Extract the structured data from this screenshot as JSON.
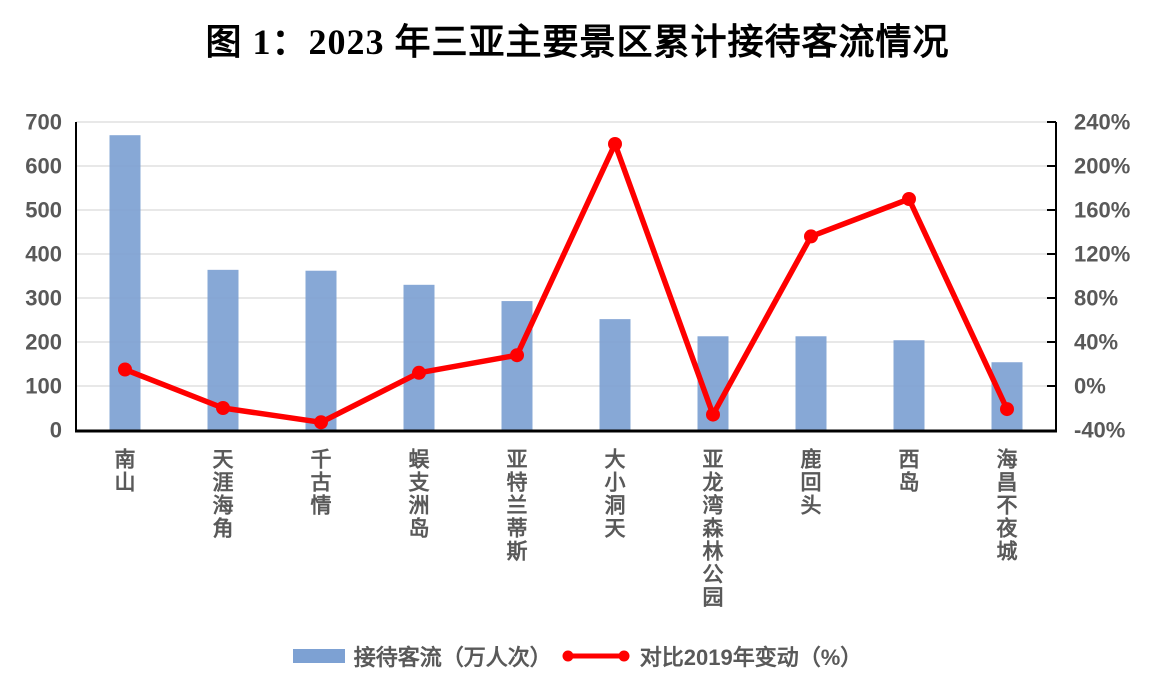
{
  "chart_data": {
    "type": "bar+line combo",
    "title": "图 1：2023 年三亚主要景区累计接待客流情况",
    "categories": [
      "南山",
      "天涯海角",
      "千古情",
      "蜈支洲岛",
      "亚特兰蒂斯",
      "大小洞天",
      "亚龙湾森林公园",
      "鹿回头",
      "西岛",
      "海昌不夜城"
    ],
    "series": [
      {
        "name": "接待客流（万人次）",
        "type": "bar",
        "axis": "left",
        "color": "#7da1d3",
        "values": [
          670,
          364,
          362,
          330,
          293,
          252,
          213,
          213,
          204,
          154
        ]
      },
      {
        "name": "对比2019年变动（%）",
        "type": "line",
        "axis": "right",
        "color": "#ff0000",
        "values": [
          15,
          -20,
          -33,
          12,
          28,
          220,
          -26,
          136,
          170,
          -21
        ]
      }
    ],
    "left_axis": {
      "min": 0,
      "max": 700,
      "step": 100,
      "ticks": [
        "700",
        "600",
        "500",
        "400",
        "300",
        "200",
        "100",
        "0"
      ]
    },
    "right_axis": {
      "min": -40,
      "max": 240,
      "step": 40,
      "ticks": [
        "240%",
        "200%",
        "160%",
        "120%",
        "80%",
        "40%",
        "0%",
        "-40%"
      ]
    },
    "layout_hints": {
      "legend_position": "bottom",
      "grid": "horizontal",
      "category_label_orientation": "vertical-stacked",
      "grid_color": "#e0e0e0",
      "axis_color": "#000000",
      "tick_text_color": "#595959"
    }
  }
}
